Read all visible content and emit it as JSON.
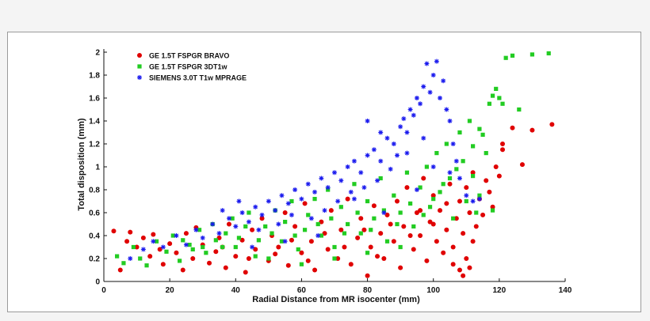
{
  "chart_data": {
    "type": "scatter",
    "xlabel": "Radial Distance from MR isocenter (mm)",
    "ylabel": "Total disposition (mm)",
    "xlim": [
      0,
      140
    ],
    "ylim": [
      0,
      2
    ],
    "xticks": [
      "0",
      "20",
      "40",
      "60",
      "80",
      "100",
      "120",
      "140"
    ],
    "yticks": [
      "0",
      "0.2",
      "0.4",
      "0.6",
      "0.8",
      "1",
      "1.2",
      "1.4",
      "1.6",
      "1.8",
      "2"
    ],
    "grid": false,
    "legend_position": "top-left",
    "series": [
      {
        "name": "GE 1.5T FSPGR BRAVO",
        "color": "#e00000",
        "marker": "circle",
        "points": [
          [
            3,
            0.44
          ],
          [
            5,
            0.1
          ],
          [
            7,
            0.35
          ],
          [
            8,
            0.43
          ],
          [
            10,
            0.3
          ],
          [
            12,
            0.38
          ],
          [
            14,
            0.22
          ],
          [
            15,
            0.41
          ],
          [
            17,
            0.28
          ],
          [
            18,
            0.15
          ],
          [
            20,
            0.33
          ],
          [
            22,
            0.25
          ],
          [
            24,
            0.1
          ],
          [
            25,
            0.42
          ],
          [
            27,
            0.2
          ],
          [
            28,
            0.47
          ],
          [
            30,
            0.32
          ],
          [
            32,
            0.16
          ],
          [
            34,
            0.26
          ],
          [
            35,
            0.38
          ],
          [
            37,
            0.12
          ],
          [
            38,
            0.5
          ],
          [
            40,
            0.22
          ],
          [
            42,
            0.36
          ],
          [
            43,
            0.08
          ],
          [
            45,
            0.45
          ],
          [
            46,
            0.28
          ],
          [
            48,
            0.55
          ],
          [
            50,
            0.18
          ],
          [
            51,
            0.4
          ],
          [
            53,
            0.3
          ],
          [
            55,
            0.6
          ],
          [
            56,
            0.14
          ],
          [
            58,
            0.48
          ],
          [
            60,
            0.25
          ],
          [
            61,
            0.68
          ],
          [
            63,
            0.35
          ],
          [
            64,
            0.1
          ],
          [
            66,
            0.52
          ],
          [
            68,
            0.28
          ],
          [
            69,
            0.62
          ],
          [
            71,
            0.2
          ],
          [
            72,
            0.45
          ],
          [
            74,
            0.72
          ],
          [
            75,
            0.15
          ],
          [
            77,
            0.38
          ],
          [
            78,
            0.55
          ],
          [
            80,
            0.05
          ],
          [
            81,
            0.3
          ],
          [
            82,
            0.66
          ],
          [
            84,
            0.42
          ],
          [
            85,
            0.2
          ],
          [
            86,
            0.58
          ],
          [
            88,
            0.35
          ],
          [
            89,
            0.7
          ],
          [
            90,
            0.12
          ],
          [
            91,
            0.48
          ],
          [
            92,
            0.82
          ],
          [
            94,
            0.28
          ],
          [
            95,
            0.6
          ],
          [
            96,
            0.4
          ],
          [
            97,
            0.9
          ],
          [
            98,
            0.18
          ],
          [
            99,
            0.52
          ],
          [
            100,
            0.75
          ],
          [
            101,
            0.35
          ],
          [
            102,
            0.62
          ],
          [
            103,
            0.25
          ],
          [
            104,
            0.45
          ],
          [
            105,
            0.85
          ],
          [
            106,
            0.3
          ],
          [
            107,
            0.55
          ],
          [
            108,
            0.1
          ],
          [
            108,
            0.7
          ],
          [
            109,
            0.42
          ],
          [
            110,
            0.2
          ],
          [
            110,
            0.82
          ],
          [
            111,
            0.6
          ],
          [
            112,
            0.35
          ],
          [
            112,
            0.95
          ],
          [
            114,
            0.72
          ],
          [
            115,
            0.58
          ],
          [
            116,
            0.88
          ],
          [
            117,
            0.78
          ],
          [
            118,
            0.65
          ],
          [
            119,
            1.0
          ],
          [
            120,
            0.92
          ],
          [
            121,
            1.15
          ],
          [
            121,
            1.2
          ],
          [
            124,
            1.34
          ],
          [
            127,
            1.02
          ],
          [
            130,
            1.32
          ],
          [
            136,
            1.37
          ],
          [
            36,
            0.3
          ],
          [
            44,
            0.2
          ],
          [
            52,
            0.24
          ],
          [
            57,
            0.36
          ],
          [
            62,
            0.18
          ],
          [
            67,
            0.42
          ],
          [
            73,
            0.3
          ],
          [
            79,
            0.45
          ],
          [
            83,
            0.22
          ],
          [
            87,
            0.5
          ],
          [
            93,
            0.4
          ],
          [
            96,
            0.62
          ],
          [
            100,
            0.5
          ],
          [
            104,
            0.68
          ],
          [
            106,
            0.15
          ],
          [
            109,
            0.05
          ],
          [
            111,
            0.12
          ],
          [
            113,
            0.48
          ]
        ]
      },
      {
        "name": "GE 1.5T FSPGR 3DT1w",
        "color": "#22cc22",
        "marker": "square",
        "points": [
          [
            4,
            0.22
          ],
          [
            6,
            0.16
          ],
          [
            9,
            0.3
          ],
          [
            11,
            0.2
          ],
          [
            13,
            0.14
          ],
          [
            16,
            0.35
          ],
          [
            19,
            0.26
          ],
          [
            21,
            0.4
          ],
          [
            23,
            0.18
          ],
          [
            26,
            0.32
          ],
          [
            29,
            0.45
          ],
          [
            31,
            0.25
          ],
          [
            33,
            0.5
          ],
          [
            36,
            0.3
          ],
          [
            39,
            0.55
          ],
          [
            41,
            0.38
          ],
          [
            44,
            0.6
          ],
          [
            46,
            0.22
          ],
          [
            49,
            0.48
          ],
          [
            52,
            0.62
          ],
          [
            54,
            0.35
          ],
          [
            57,
            0.7
          ],
          [
            59,
            0.28
          ],
          [
            62,
            0.58
          ],
          [
            64,
            0.72
          ],
          [
            66,
            0.4
          ],
          [
            68,
            0.8
          ],
          [
            70,
            0.3
          ],
          [
            72,
            0.65
          ],
          [
            74,
            0.5
          ],
          [
            76,
            0.85
          ],
          [
            78,
            0.42
          ],
          [
            80,
            0.7
          ],
          [
            82,
            0.55
          ],
          [
            84,
            0.9
          ],
          [
            86,
            0.35
          ],
          [
            88,
            0.75
          ],
          [
            90,
            0.6
          ],
          [
            92,
            0.95
          ],
          [
            94,
            0.48
          ],
          [
            96,
            0.82
          ],
          [
            98,
            1.0
          ],
          [
            99,
            0.65
          ],
          [
            101,
            1.12
          ],
          [
            102,
            0.78
          ],
          [
            104,
            1.2
          ],
          [
            105,
            0.9
          ],
          [
            106,
            0.55
          ],
          [
            108,
            1.3
          ],
          [
            109,
            1.05
          ],
          [
            110,
            0.7
          ],
          [
            111,
            1.4
          ],
          [
            112,
            1.18
          ],
          [
            113,
            0.6
          ],
          [
            114,
            1.33
          ],
          [
            115,
            1.28
          ],
          [
            116,
            1.12
          ],
          [
            117,
            1.55
          ],
          [
            118,
            1.62
          ],
          [
            119,
            1.68
          ],
          [
            120,
            1.6
          ],
          [
            121,
            1.55
          ],
          [
            122,
            1.95
          ],
          [
            124,
            1.97
          ],
          [
            126,
            1.5
          ],
          [
            130,
            1.98
          ],
          [
            135,
            1.99
          ],
          [
            118,
            0.62
          ],
          [
            114,
            0.75
          ],
          [
            112,
            0.92
          ],
          [
            107,
            0.98
          ],
          [
            103,
            0.85
          ],
          [
            100,
            0.72
          ],
          [
            97,
            0.58
          ],
          [
            93,
            0.68
          ],
          [
            89,
            0.5
          ],
          [
            85,
            0.62
          ],
          [
            81,
            0.45
          ],
          [
            77,
            0.6
          ],
          [
            73,
            0.42
          ],
          [
            69,
            0.55
          ],
          [
            65,
            0.5
          ],
          [
            61,
            0.45
          ],
          [
            58,
            0.4
          ],
          [
            55,
            0.52
          ],
          [
            51,
            0.42
          ],
          [
            47,
            0.36
          ],
          [
            43,
            0.48
          ],
          [
            40,
            0.3
          ],
          [
            37,
            0.42
          ],
          [
            34,
            0.36
          ],
          [
            30,
            0.3
          ],
          [
            27,
            0.28
          ],
          [
            24,
            0.36
          ],
          [
            50,
            0.2
          ],
          [
            60,
            0.15
          ],
          [
            70,
            0.2
          ],
          [
            80,
            0.25
          ],
          [
            90,
            0.3
          ]
        ]
      },
      {
        "name": "SIEMENS 3.0T T1w MPRAGE",
        "color": "#1a1aee",
        "marker": "asterisk",
        "points": [
          [
            8,
            0.2
          ],
          [
            12,
            0.28
          ],
          [
            15,
            0.35
          ],
          [
            18,
            0.3
          ],
          [
            22,
            0.4
          ],
          [
            25,
            0.32
          ],
          [
            28,
            0.45
          ],
          [
            30,
            0.38
          ],
          [
            33,
            0.5
          ],
          [
            35,
            0.42
          ],
          [
            38,
            0.55
          ],
          [
            40,
            0.48
          ],
          [
            42,
            0.6
          ],
          [
            44,
            0.52
          ],
          [
            46,
            0.65
          ],
          [
            48,
            0.58
          ],
          [
            50,
            0.7
          ],
          [
            52,
            0.62
          ],
          [
            54,
            0.75
          ],
          [
            56,
            0.68
          ],
          [
            58,
            0.8
          ],
          [
            60,
            0.72
          ],
          [
            62,
            0.85
          ],
          [
            64,
            0.78
          ],
          [
            66,
            0.9
          ],
          [
            68,
            0.82
          ],
          [
            70,
            0.95
          ],
          [
            72,
            0.88
          ],
          [
            74,
            1.0
          ],
          [
            76,
            1.05
          ],
          [
            78,
            0.95
          ],
          [
            80,
            1.1
          ],
          [
            82,
            1.15
          ],
          [
            84,
            1.05
          ],
          [
            86,
            1.25
          ],
          [
            88,
            1.2
          ],
          [
            90,
            1.35
          ],
          [
            91,
            1.42
          ],
          [
            92,
            1.3
          ],
          [
            93,
            1.5
          ],
          [
            94,
            1.45
          ],
          [
            95,
            1.6
          ],
          [
            96,
            1.55
          ],
          [
            97,
            1.7
          ],
          [
            98,
            1.9
          ],
          [
            99,
            1.65
          ],
          [
            100,
            1.8
          ],
          [
            101,
            1.92
          ],
          [
            102,
            1.6
          ],
          [
            103,
            1.75
          ],
          [
            104,
            1.5
          ],
          [
            105,
            1.4
          ],
          [
            106,
            1.2
          ],
          [
            107,
            1.05
          ],
          [
            108,
            0.9
          ],
          [
            110,
            0.75
          ],
          [
            112,
            0.7
          ],
          [
            114,
            0.72
          ],
          [
            36,
            0.62
          ],
          [
            41,
            0.7
          ],
          [
            47,
            0.45
          ],
          [
            53,
            0.5
          ],
          [
            57,
            0.58
          ],
          [
            63,
            0.55
          ],
          [
            67,
            0.62
          ],
          [
            71,
            0.7
          ],
          [
            75,
            0.78
          ],
          [
            79,
            0.82
          ],
          [
            83,
            0.88
          ],
          [
            87,
            0.98
          ],
          [
            89,
            1.1
          ],
          [
            45,
            0.3
          ],
          [
            55,
            0.35
          ],
          [
            65,
            0.4
          ],
          [
            85,
            0.6
          ],
          [
            95,
            0.8
          ],
          [
            100,
            1.0
          ],
          [
            105,
            0.95
          ],
          [
            97,
            1.25
          ],
          [
            92,
            1.12
          ],
          [
            84,
            1.3
          ],
          [
            80,
            1.4
          ],
          [
            76,
            0.72
          ]
        ]
      }
    ]
  }
}
